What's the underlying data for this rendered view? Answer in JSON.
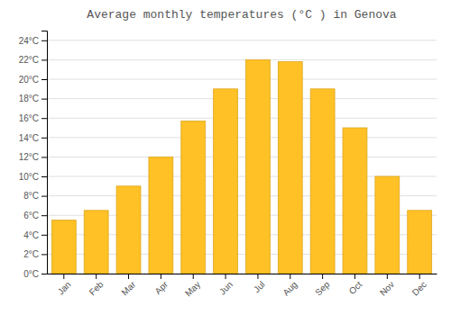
{
  "chart_data": {
    "type": "bar",
    "title": "Average monthly temperatures (°C ) in Genova",
    "categories": [
      "Jan",
      "Feb",
      "Mar",
      "Apr",
      "May",
      "Jun",
      "Jul",
      "Aug",
      "Sep",
      "Oct",
      "Nov",
      "Dec"
    ],
    "values": [
      5.5,
      6.5,
      9.0,
      12.0,
      15.7,
      19.0,
      22.0,
      21.8,
      19.0,
      15.0,
      10.0,
      6.5
    ],
    "color": "#FFC125",
    "ylim": [
      0,
      25
    ],
    "yticks": [
      {
        "value": 0,
        "label": "0°C"
      },
      {
        "value": 2,
        "label": "2°C"
      },
      {
        "value": 4,
        "label": "4°C"
      },
      {
        "value": 6,
        "label": "6°C"
      },
      {
        "value": 8,
        "label": "8°C"
      },
      {
        "value": 10,
        "label": "10°C"
      },
      {
        "value": 12,
        "label": "12°C"
      },
      {
        "value": 14,
        "label": "14°C"
      },
      {
        "value": 16,
        "label": "16°C"
      },
      {
        "value": 18,
        "label": "18°C"
      },
      {
        "value": 20,
        "label": "20°C"
      },
      {
        "value": 22,
        "label": "22°C"
      },
      {
        "value": 24,
        "label": "24°C"
      }
    ],
    "grid": true
  }
}
